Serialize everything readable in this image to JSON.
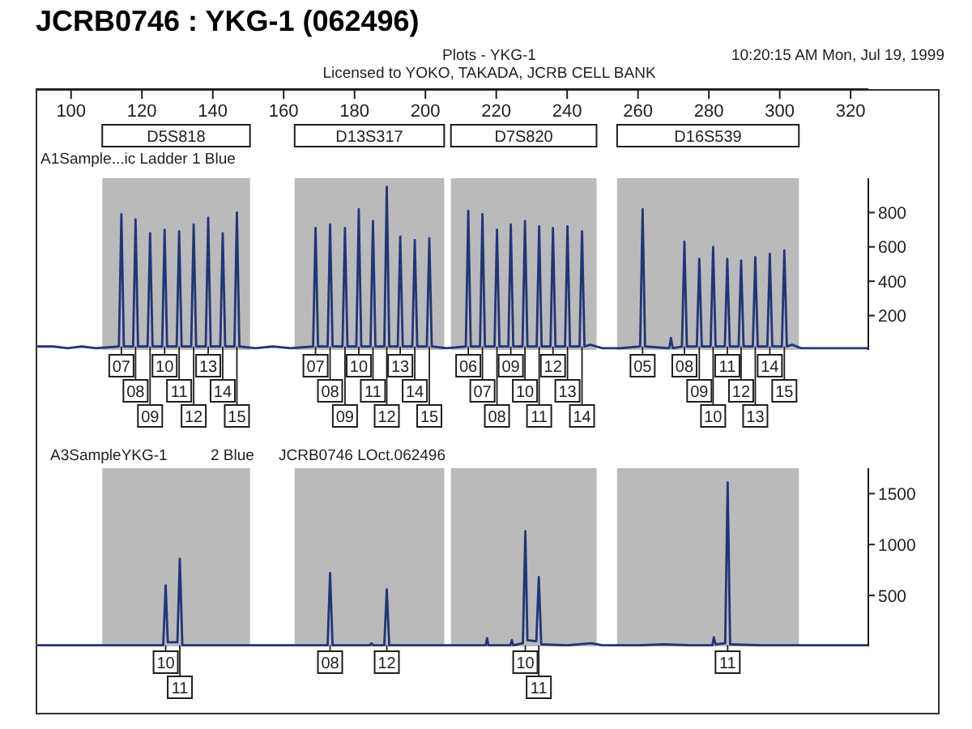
{
  "chart_data": [
    {
      "type": "line",
      "title": "JCRB0746 : YKG-1 (062496)",
      "subtitle": "Plots - YKG-1",
      "annotations": [
        "Licensed to YOKO, TAKADA, JCRB CELL BANK",
        "10:20:15 AM Mon, Jul 19, 1999",
        "A1Sample...ic Ladder 1 Blue",
        {
          "text": "07",
          "x": 114.2,
          "y": 20
        },
        {
          "text": "08",
          "x": 118.2,
          "y": 20
        },
        {
          "text": "09",
          "x": 122.3,
          "y": 20
        },
        {
          "text": "10",
          "x": 126.4,
          "y": 20
        },
        {
          "text": "11",
          "x": 130.5,
          "y": 20
        },
        {
          "text": "12",
          "x": 134.6,
          "y": 20
        },
        {
          "text": "13",
          "x": 138.7,
          "y": 20
        },
        {
          "text": "14",
          "x": 142.8,
          "y": 20
        },
        {
          "text": "15",
          "x": 146.8,
          "y": 20
        },
        {
          "text": "07",
          "x": 169.0,
          "y": 20
        },
        {
          "text": "08",
          "x": 173.1,
          "y": 20
        },
        {
          "text": "09",
          "x": 177.3,
          "y": 20
        },
        {
          "text": "10",
          "x": 181.2,
          "y": 20
        },
        {
          "text": "11",
          "x": 185.2,
          "y": 20
        },
        {
          "text": "12",
          "x": 189.1,
          "y": 20
        },
        {
          "text": "13",
          "x": 192.9,
          "y": 20
        },
        {
          "text": "14",
          "x": 197.0,
          "y": 20
        },
        {
          "text": "15",
          "x": 201.1,
          "y": 20
        },
        {
          "text": "06",
          "x": 212.1,
          "y": 20
        },
        {
          "text": "07",
          "x": 216.1,
          "y": 20
        },
        {
          "text": "08",
          "x": 220.2,
          "y": 20
        },
        {
          "text": "09",
          "x": 224.1,
          "y": 20
        },
        {
          "text": "10",
          "x": 228.1,
          "y": 20
        },
        {
          "text": "11",
          "x": 232.1,
          "y": 20
        },
        {
          "text": "12",
          "x": 236.0,
          "y": 20
        },
        {
          "text": "13",
          "x": 240.1,
          "y": 20
        },
        {
          "text": "14",
          "x": 244.2,
          "y": 20
        },
        {
          "text": "05",
          "x": 261.3,
          "y": 20
        },
        {
          "text": "08",
          "x": 273.1,
          "y": 20
        },
        {
          "text": "09",
          "x": 277.3,
          "y": 20
        },
        {
          "text": "10",
          "x": 281.2,
          "y": 20
        },
        {
          "text": "11",
          "x": 285.2,
          "y": 20
        },
        {
          "text": "12",
          "x": 289.1,
          "y": 20
        },
        {
          "text": "13",
          "x": 293.1,
          "y": 20
        },
        {
          "text": "14",
          "x": 297.2,
          "y": 20
        },
        {
          "text": "15",
          "x": 301.3,
          "y": 20
        }
      ],
      "x": [
        90.5,
        95,
        99,
        103,
        107,
        113.5,
        114.2,
        114.9,
        117.5,
        118.2,
        118.9,
        121.6,
        122.3,
        123.0,
        125.7,
        126.4,
        127.1,
        129.8,
        130.5,
        131.2,
        133.9,
        134.6,
        135.3,
        138.0,
        138.7,
        139.4,
        142.1,
        142.8,
        143.5,
        146.1,
        146.8,
        147.5,
        152,
        157,
        162,
        168.3,
        169.0,
        169.7,
        172.4,
        173.1,
        173.8,
        176.6,
        177.3,
        178.0,
        180.5,
        181.2,
        181.9,
        184.5,
        185.2,
        185.9,
        188.4,
        189.1,
        189.8,
        192.2,
        192.9,
        193.6,
        196.3,
        197.0,
        197.7,
        200.4,
        201.1,
        201.8,
        206,
        211.4,
        212.1,
        212.8,
        215.4,
        216.1,
        216.8,
        219.5,
        220.2,
        220.9,
        223.4,
        224.1,
        224.8,
        227.4,
        228.1,
        228.8,
        231.4,
        232.1,
        232.8,
        235.3,
        236.0,
        236.7,
        239.4,
        240.1,
        240.8,
        243.5,
        244.2,
        244.9,
        246.5,
        250,
        255,
        260.6,
        261.3,
        262.0,
        268.8,
        269.3,
        269.8,
        272.4,
        273.1,
        273.8,
        276.6,
        277.3,
        278.0,
        280.5,
        281.2,
        281.9,
        284.5,
        285.2,
        285.9,
        288.4,
        289.1,
        289.8,
        292.4,
        293.1,
        293.8,
        296.5,
        297.2,
        297.9,
        300.6,
        301.3,
        302.0,
        303.5,
        306,
        312,
        318,
        325
      ],
      "values": [
        20,
        20,
        10,
        20,
        10,
        20,
        790,
        20,
        20,
        760,
        20,
        20,
        680,
        20,
        20,
        700,
        20,
        20,
        690,
        20,
        20,
        730,
        20,
        20,
        770,
        20,
        20,
        680,
        20,
        20,
        800,
        20,
        10,
        20,
        10,
        20,
        710,
        20,
        20,
        730,
        20,
        20,
        710,
        20,
        20,
        820,
        20,
        20,
        750,
        20,
        20,
        950,
        20,
        20,
        660,
        20,
        20,
        640,
        20,
        20,
        650,
        20,
        10,
        20,
        810,
        20,
        20,
        790,
        20,
        20,
        700,
        20,
        20,
        730,
        20,
        20,
        750,
        20,
        20,
        720,
        20,
        20,
        710,
        20,
        20,
        720,
        20,
        20,
        690,
        20,
        30,
        10,
        10,
        20,
        820,
        20,
        10,
        70,
        10,
        20,
        630,
        20,
        20,
        530,
        20,
        20,
        600,
        20,
        20,
        530,
        20,
        20,
        520,
        20,
        20,
        540,
        20,
        20,
        560,
        20,
        20,
        580,
        20,
        30,
        10,
        10,
        10,
        10
      ],
      "color": "#233478",
      "xlim": [
        90,
        325
      ],
      "xticks": [
        100,
        120,
        140,
        160,
        180,
        200,
        220,
        240,
        260,
        280,
        300,
        320
      ],
      "ylim": [
        0,
        1000
      ],
      "yticks": [
        200,
        400,
        600,
        800
      ],
      "bands": [
        {
          "axis": "x",
          "from": 108.8,
          "to": 150.5,
          "label": "D5S818",
          "color": "#bababa"
        },
        {
          "axis": "x",
          "from": 163.1,
          "to": 205.3,
          "label": "D13S317",
          "color": "#bababa"
        },
        {
          "axis": "x",
          "from": 207.2,
          "to": 248.3,
          "label": "D7S820",
          "color": "#bababa"
        },
        {
          "axis": "x",
          "from": 254.1,
          "to": 305.4,
          "label": "D16S539",
          "color": "#bababa"
        }
      ]
    },
    {
      "type": "line",
      "annotations": [
        "A3SampleYKG-1",
        "2 Blue",
        "JCRB0746 LOct.062496",
        {
          "text": "10",
          "x": 126.7,
          "y": 10
        },
        {
          "text": "11",
          "x": 130.7,
          "y": 10
        },
        {
          "text": "08",
          "x": 173.1,
          "y": 10
        },
        {
          "text": "12",
          "x": 189.1,
          "y": 10
        },
        {
          "text": "10",
          "x": 228.2,
          "y": 10
        },
        {
          "text": "11",
          "x": 232.0,
          "y": 10
        },
        {
          "text": "11",
          "x": 285.3,
          "y": 10
        }
      ],
      "x": [
        90.5,
        100,
        110,
        120,
        126.0,
        126.7,
        127.3,
        130.0,
        130.7,
        131.4,
        140,
        150,
        160,
        170,
        172.4,
        173.1,
        173.8,
        184.3,
        184.8,
        185.3,
        188.4,
        189.1,
        189.8,
        200,
        210,
        217.0,
        217.4,
        217.8,
        224.0,
        224.4,
        224.8,
        227.5,
        228.2,
        228.8,
        231.3,
        232.0,
        232.7,
        240,
        246.8,
        250,
        260,
        267.4,
        275,
        281.0,
        281.4,
        281.9,
        284.6,
        285.3,
        286.0,
        295,
        305,
        315,
        325
      ],
      "values": [
        10,
        10,
        10,
        10,
        10,
        600,
        40,
        40,
        860,
        10,
        10,
        10,
        10,
        10,
        10,
        720,
        10,
        10,
        30,
        10,
        10,
        560,
        10,
        10,
        10,
        10,
        80,
        10,
        10,
        60,
        10,
        30,
        1130,
        60,
        50,
        680,
        20,
        10,
        30,
        10,
        10,
        20,
        10,
        10,
        90,
        20,
        30,
        1610,
        20,
        10,
        10,
        10,
        10
      ],
      "color": "#233478",
      "xlim": [
        90,
        325
      ],
      "ylim": [
        0,
        1750
      ],
      "yticks": [
        500,
        1000,
        1500
      ],
      "tick_labels": "y",
      "bands": [
        {
          "axis": "x",
          "from": 108.8,
          "to": 150.5,
          "color": "#bababa"
        },
        {
          "axis": "x",
          "from": 163.1,
          "to": 205.3,
          "color": "#bababa"
        },
        {
          "axis": "x",
          "from": 207.2,
          "to": 248.3,
          "color": "#bababa"
        },
        {
          "axis": "x",
          "from": 254.1,
          "to": 305.4,
          "color": "#bababa"
        }
      ]
    }
  ]
}
